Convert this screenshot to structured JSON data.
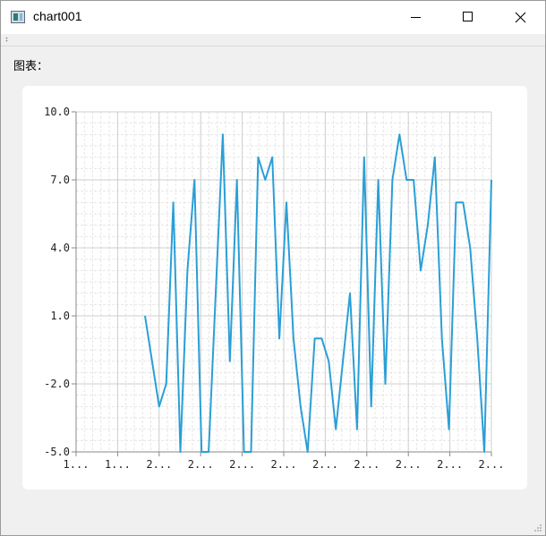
{
  "window": {
    "title": "chart001",
    "icon": "app-window-icon"
  },
  "controls": {
    "minimize": "minimize-icon",
    "maximize": "maximize-icon",
    "close": "close-icon"
  },
  "main": {
    "chart_label": "图表："
  },
  "chart_data": {
    "type": "line",
    "title": "",
    "xlabel": "",
    "ylabel": "",
    "ylim": [
      -5,
      10
    ],
    "y_ticks": [
      "10.0",
      "7.0",
      "4.0",
      "1.0",
      "-2.0",
      "-5.0"
    ],
    "x_ticks": [
      "1...",
      "1...",
      "2...",
      "2...",
      "2...",
      "2...",
      "2...",
      "2...",
      "2...",
      "2...",
      "2..."
    ],
    "grid": true,
    "legend": "none",
    "color": "#2a9fd6",
    "series": [
      {
        "values": [
          1,
          -1,
          -3,
          -2,
          6,
          -5,
          3,
          7,
          -5,
          -5,
          2,
          9,
          -1,
          7,
          -5,
          -5,
          8,
          7,
          8,
          0,
          6,
          0,
          -3,
          -5,
          0,
          0,
          -1,
          -4,
          -1,
          2,
          -4,
          8,
          -3,
          7,
          -2,
          7,
          9,
          7,
          7,
          3,
          5,
          8,
          0,
          -4,
          6,
          6,
          4,
          0,
          -5,
          7
        ]
      }
    ]
  }
}
